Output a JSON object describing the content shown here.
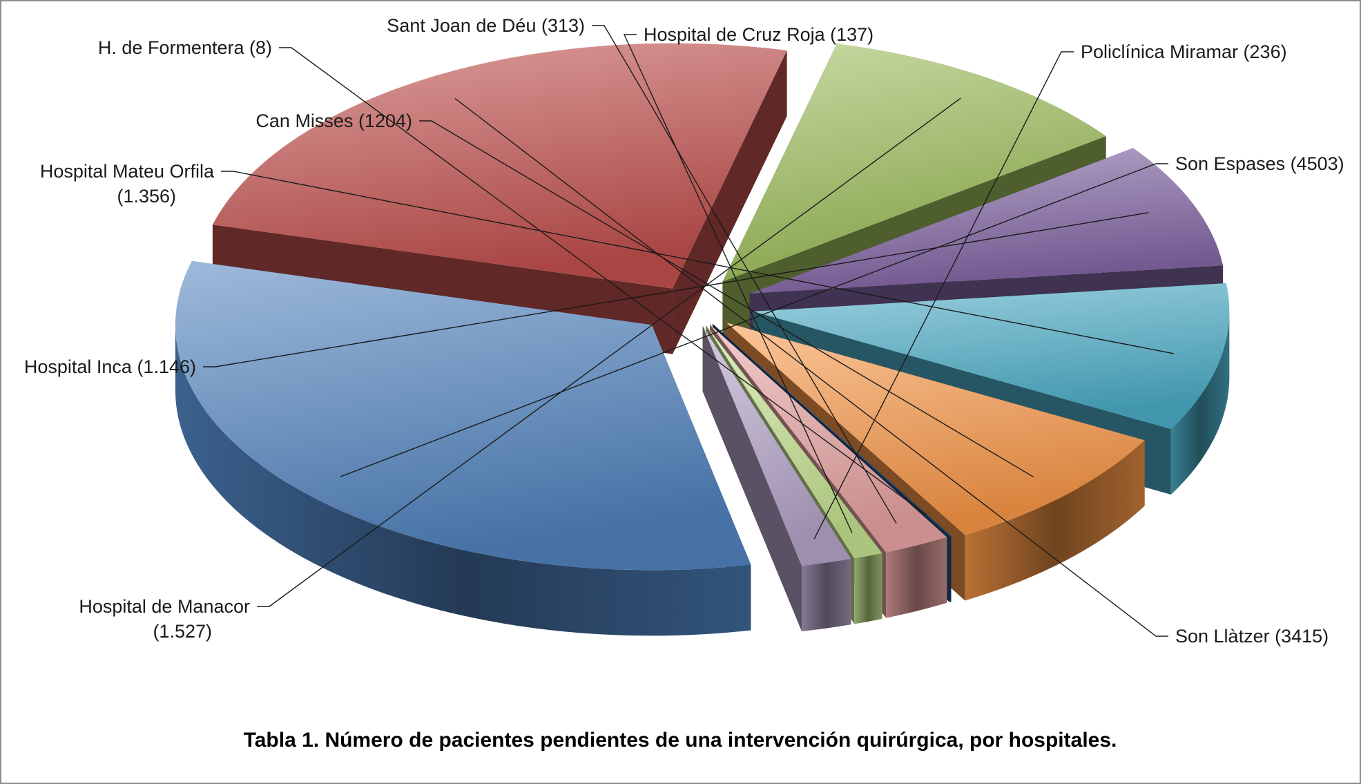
{
  "caption": "Tabla 1. Número de pacientes pendientes de una intervención quirúrgica, por hospitales.",
  "chart_data": {
    "type": "pie",
    "style": "3d-exploded",
    "title": "",
    "legend": "none",
    "slices": [
      {
        "name": "Son Espases",
        "label": "Son Espases (4503)",
        "value": 4503,
        "color": "#4f81bd"
      },
      {
        "name": "Son Llàtzer",
        "label": "Son Llàtzer (3415)",
        "value": 3415,
        "color": "#c0504d"
      },
      {
        "name": "Hospital de Manacor",
        "label": "Hospital de Manacor (1.527)",
        "label_lines": [
          "Hospital de Manacor",
          "(1.527)"
        ],
        "value": 1527,
        "color": "#9bbb59"
      },
      {
        "name": "Hospital Inca",
        "label": "Hospital Inca (1.146)",
        "value": 1146,
        "color": "#8064a2"
      },
      {
        "name": "Hospital Mateu Orfila",
        "label": "Hospital Mateu Orfila (1.356)",
        "label_lines": [
          "Hospital Mateu Orfila",
          "(1.356)"
        ],
        "value": 1356,
        "color": "#4bacc6"
      },
      {
        "name": "Can Misses",
        "label": "Can Misses (1204)",
        "value": 1204,
        "color": "#f79646"
      },
      {
        "name": "H. de Formentera",
        "label": "H. de Formentera (8)",
        "value": 8,
        "color": "#1f497d"
      },
      {
        "name": "Sant Joan de Déu",
        "label": "Sant Joan de Déu (313)",
        "value": 313,
        "color": "#e6a3a1"
      },
      {
        "name": "Hospital de Cruz Roja",
        "label": "Hospital de Cruz Roja (137)",
        "value": 137,
        "color": "#c3e08f"
      },
      {
        "name": "Policlínica Miramar",
        "label": "Policlínica Miramar (236)",
        "value": 236,
        "color": "#b3a2c7"
      }
    ]
  }
}
